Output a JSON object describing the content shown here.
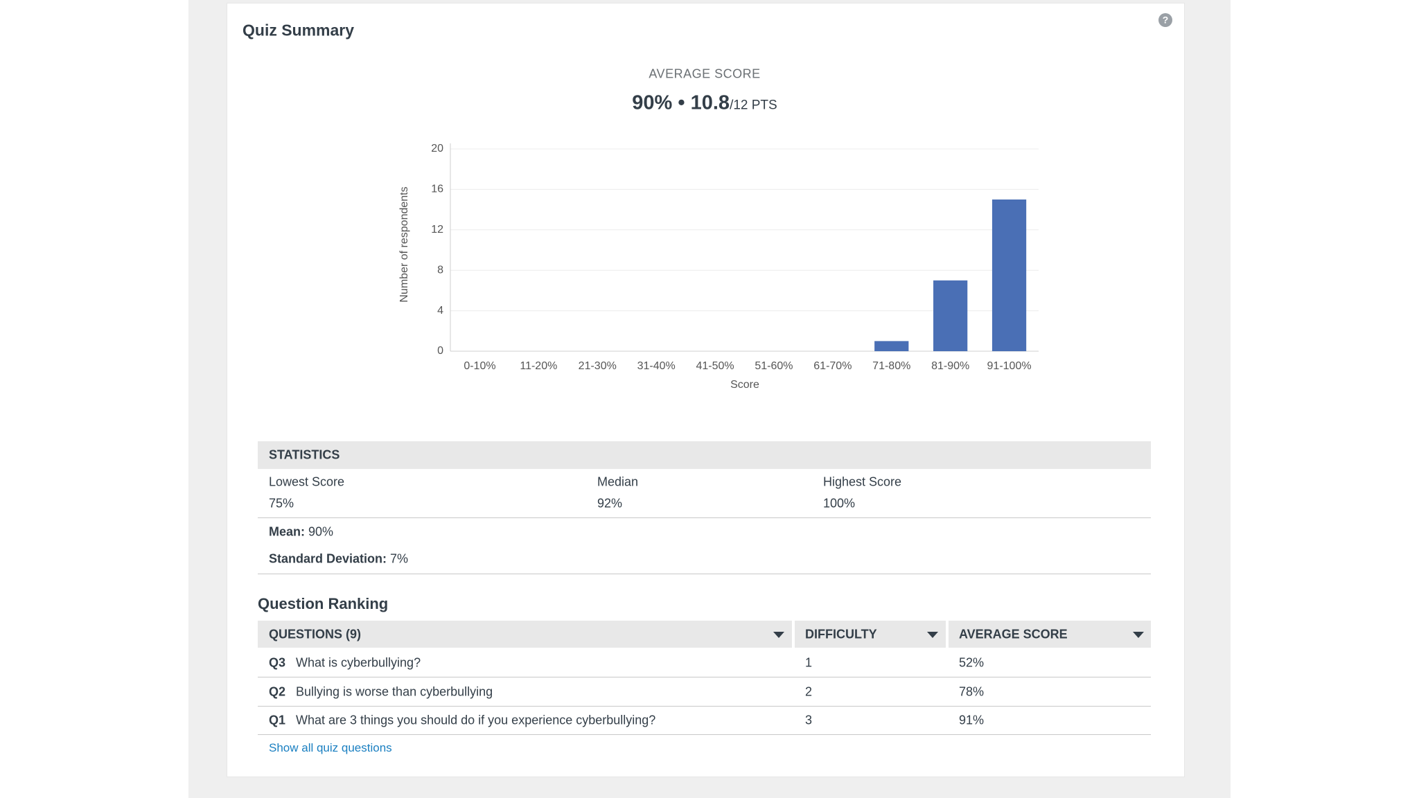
{
  "header": {
    "title": "Quiz Summary"
  },
  "summary": {
    "label": "AVERAGE SCORE",
    "percent": "90%",
    "separator": "•",
    "points": "10.8",
    "out_of": "/12 PTS"
  },
  "chart_data": {
    "type": "bar",
    "y_label": "Number of respondents",
    "x_label": "Score",
    "categories": [
      "0-10%",
      "11-20%",
      "21-30%",
      "31-40%",
      "41-50%",
      "51-60%",
      "61-70%",
      "71-80%",
      "81-90%",
      "91-100%"
    ],
    "values": [
      0,
      0,
      0,
      0,
      0,
      0,
      0,
      1,
      7,
      15
    ],
    "color": "#4a6fb5",
    "ylim": [
      0,
      20
    ],
    "yticks": [
      0,
      4,
      8,
      12,
      16,
      20
    ],
    "grid": true
  },
  "statistics": {
    "title": "STATISTICS",
    "items": [
      {
        "label": "Lowest Score",
        "value": "75%"
      },
      {
        "label": "Median",
        "value": "92%"
      },
      {
        "label": "Highest Score",
        "value": "100%"
      }
    ],
    "mean": {
      "label": "Mean:",
      "value": "90%"
    },
    "std": {
      "label": "Standard Deviation:",
      "value": "7%"
    }
  },
  "ranking": {
    "title": "Question Ranking",
    "columns": [
      "QUESTIONS (9)",
      "DIFFICULTY",
      "AVERAGE SCORE"
    ],
    "rows": [
      [
        "Q3",
        "What is cyberbullying?",
        1,
        "52%"
      ],
      [
        "Q2",
        "Bullying is worse than cyberbullying",
        2,
        "78%"
      ],
      [
        "Q1",
        "What are 3 things you should do if you experience cyberbullying?",
        3,
        "91%"
      ]
    ],
    "link": "Show all quiz questions"
  }
}
